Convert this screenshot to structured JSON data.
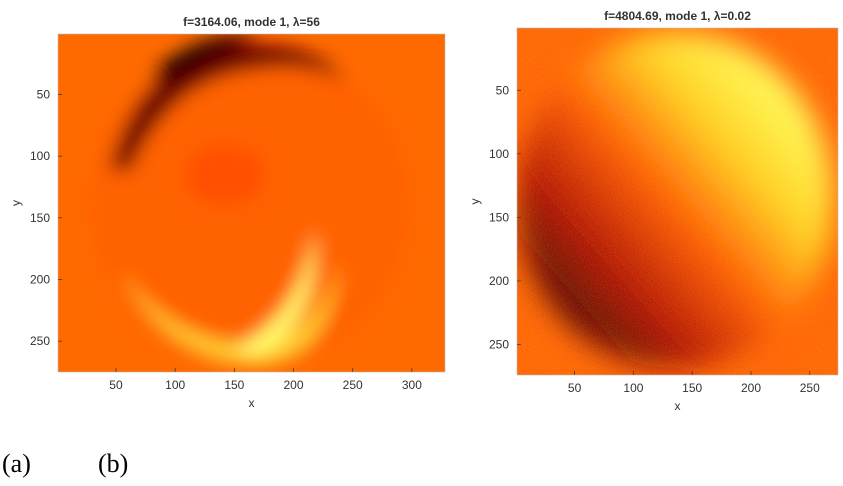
{
  "chart_data": [
    {
      "type": "heatmap",
      "title": "f=3164.06, mode 1, λ=56",
      "xlabel": "x",
      "ylabel": "y",
      "xlim": [
        1,
        328
      ],
      "xticks": [
        50,
        100,
        150,
        200,
        250,
        300
      ],
      "ylim": [
        1,
        275
      ],
      "yticks": [
        50,
        100,
        150,
        200,
        250
      ],
      "y_reversed": true
    },
    {
      "type": "heatmap",
      "title": "f=4804.69, mode 1, λ=0.02",
      "xlabel": "x",
      "ylabel": "y",
      "xlim": [
        1,
        274
      ],
      "xticks": [
        50,
        100,
        150,
        200,
        250
      ],
      "ylim": [
        1,
        274
      ],
      "yticks": [
        50,
        100,
        150,
        200,
        250
      ],
      "y_reversed": true
    }
  ],
  "captions": [
    "(a)",
    "(b)"
  ]
}
